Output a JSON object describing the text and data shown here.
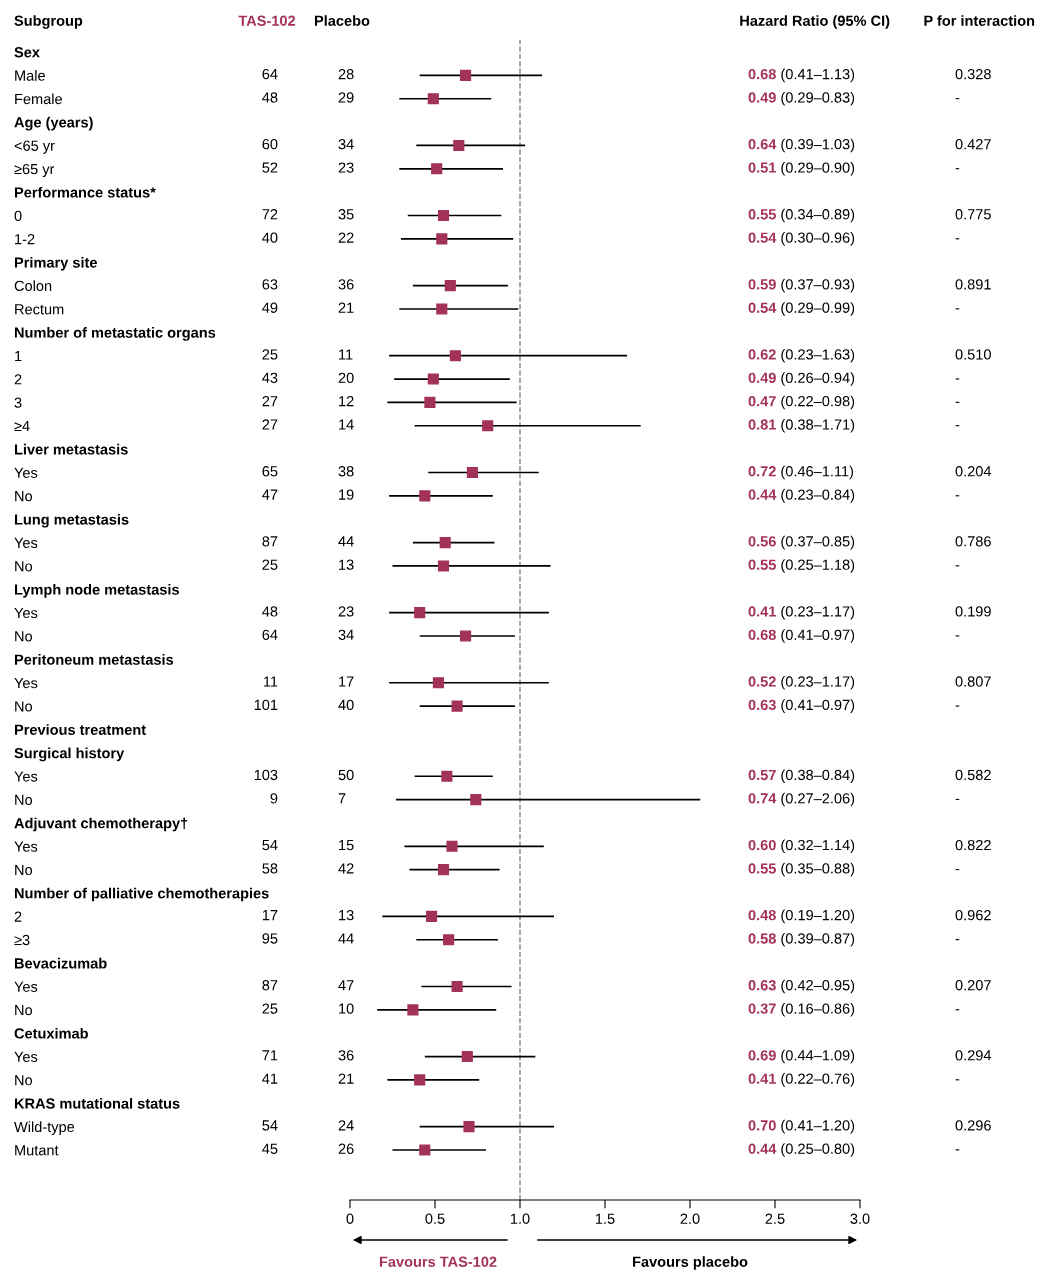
{
  "chart_data": {
    "type": "scatter",
    "orientation": "horizontal",
    "ylabel": "Subgroup",
    "marker": "square",
    "grid": false,
    "xlim": [
      0,
      3
    ],
    "xticks": [
      0,
      0.5,
      {
        "value": 1,
        "label": "1.0"
      },
      1.5,
      {
        "value": 2,
        "label": "2.0"
      },
      2.5,
      {
        "value": 3,
        "label": "3.0"
      }
    ],
    "categories": [
      "Sex",
      "Male",
      "Female",
      "Age (years)",
      "<65 yr",
      "≥65 yr",
      "Performance status*",
      "0",
      "1-2",
      "Primary site",
      "Colon",
      "Rectum",
      "Number of metastatic organs",
      "1",
      "2",
      "3",
      "≥4",
      "Liver metastasis",
      "Yes",
      "No",
      "Lung metastasis",
      "Yes",
      "No",
      "Lymph node metastasis",
      "Yes",
      "No",
      "Peritoneum metastasis",
      "Yes",
      "No",
      "Previous treatment",
      "Surgical history",
      "Yes",
      "No",
      "Adjuvant chemotherapy†",
      "Yes",
      "No",
      "Number of palliative chemotherapies",
      "2",
      "≥3",
      "Bevacizumab",
      "Yes",
      "No",
      "Cetuximab",
      "Yes",
      "No",
      "KRAS mutational status",
      "Wild-type",
      "Mutant"
    ],
    "series": [
      {
        "color": "#a3325a",
        "values": [
          null,
          0.68,
          0.49,
          null,
          0.64,
          0.51,
          null,
          0.55,
          0.54,
          null,
          0.59,
          0.54,
          null,
          0.62,
          0.49,
          0.47,
          0.81,
          null,
          0.72,
          0.44,
          null,
          0.56,
          0.55,
          null,
          0.41,
          0.68,
          null,
          0.52,
          0.63,
          null,
          null,
          0.57,
          0.74,
          null,
          0.6,
          0.55,
          null,
          0.48,
          0.58,
          null,
          0.63,
          0.37,
          null,
          0.69,
          0.41,
          null,
          0.7,
          0.44
        ],
        "errors": [
          null,
          [
            0.41,
            1.13
          ],
          [
            0.29,
            0.83
          ],
          null,
          [
            0.39,
            1.03
          ],
          [
            0.29,
            0.9
          ],
          null,
          [
            0.34,
            0.89
          ],
          [
            0.3,
            0.96
          ],
          null,
          [
            0.37,
            0.93
          ],
          [
            0.29,
            0.99
          ],
          null,
          [
            0.23,
            1.63
          ],
          [
            0.26,
            0.94
          ],
          [
            0.22,
            0.98
          ],
          [
            0.38,
            1.71
          ],
          null,
          [
            0.46,
            1.11
          ],
          [
            0.23,
            0.84
          ],
          null,
          [
            0.37,
            0.85
          ],
          [
            0.25,
            1.18
          ],
          null,
          [
            0.23,
            1.17
          ],
          [
            0.41,
            0.97
          ],
          null,
          [
            0.23,
            1.17
          ],
          [
            0.41,
            0.97
          ],
          null,
          null,
          [
            0.38,
            0.84
          ],
          [
            0.27,
            2.06
          ],
          null,
          [
            0.32,
            1.14
          ],
          [
            0.35,
            0.88
          ],
          null,
          [
            0.19,
            1.2
          ],
          [
            0.39,
            0.87
          ],
          null,
          [
            0.42,
            0.95
          ],
          [
            0.16,
            0.86
          ],
          null,
          [
            0.44,
            1.09
          ],
          [
            0.22,
            0.76
          ],
          null,
          [
            0.41,
            1.2
          ],
          [
            0.25,
            0.8
          ]
        ]
      }
    ],
    "ref_lines": [
      {
        "axis": "x",
        "value": 1,
        "color": "#808080",
        "line_style": "dashed"
      }
    ],
    "annotations": [
      "TAS-102",
      "Placebo",
      "Hazard Ratio (95% CI)",
      "P for interaction",
      "Favours TAS-102",
      "Favours placebo",
      "64",
      "28",
      "0.68 (0.41–1.13)",
      "0.328",
      "48",
      "29",
      "0.49 (0.29–0.83)",
      "-",
      "60",
      "34",
      "0.64 (0.39–1.03)",
      "0.427",
      "52",
      "23",
      "0.51 (0.29–0.90)",
      "-",
      "72",
      "35",
      "0.55 (0.34–0.89)",
      "0.775",
      "40",
      "22",
      "0.54 (0.30–0.96)",
      "-",
      "63",
      "36",
      "0.59 (0.37–0.93)",
      "0.891",
      "49",
      "21",
      "0.54 (0.29–0.99)",
      "-",
      "25",
      "11",
      "0.62 (0.23–1.63)",
      "0.510",
      "43",
      "20",
      "0.49 (0.26–0.94)",
      "-",
      "27",
      "12",
      "0.47 (0.22–0.98)",
      "-",
      "27",
      "14",
      "0.81 (0.38–1.71)",
      "-",
      "65",
      "38",
      "0.72 (0.46–1.11)",
      "0.204",
      "47",
      "19",
      "0.44 (0.23–0.84)",
      "-",
      "87",
      "44",
      "0.56 (0.37–0.85)",
      "0.786",
      "25",
      "13",
      "0.55 (0.25–1.18)",
      "-",
      "48",
      "23",
      "0.41 (0.23–1.17)",
      "0.199",
      "64",
      "34",
      "0.68 (0.41–0.97)",
      "-",
      "11",
      "17",
      "0.52 (0.23–1.17)",
      "0.807",
      "101",
      "40",
      "0.63 (0.41–0.97)",
      "-",
      "103",
      "50",
      "0.57 (0.38–0.84)",
      "0.582",
      "9",
      "7",
      "0.74 (0.27–2.06)",
      "-",
      "54",
      "15",
      "0.60 (0.32–1.14)",
      "0.822",
      "58",
      "42",
      "0.55 (0.35–0.88)",
      "-",
      "17",
      "13",
      "0.48 (0.19–1.20)",
      "0.962",
      "95",
      "44",
      "0.58 (0.39–0.87)",
      "-",
      "87",
      "47",
      "0.63 (0.42–0.95)",
      "0.207",
      "25",
      "10",
      "0.37 (0.16–0.86)",
      "-",
      "71",
      "36",
      "0.69 (0.44–1.09)",
      "0.294",
      "41",
      "21",
      "0.41 (0.22–0.76)",
      "-",
      "54",
      "24",
      "0.70 (0.41–1.20)",
      "0.296",
      "45",
      "26",
      "0.44 (0.25–0.80)",
      "-"
    ]
  }
}
